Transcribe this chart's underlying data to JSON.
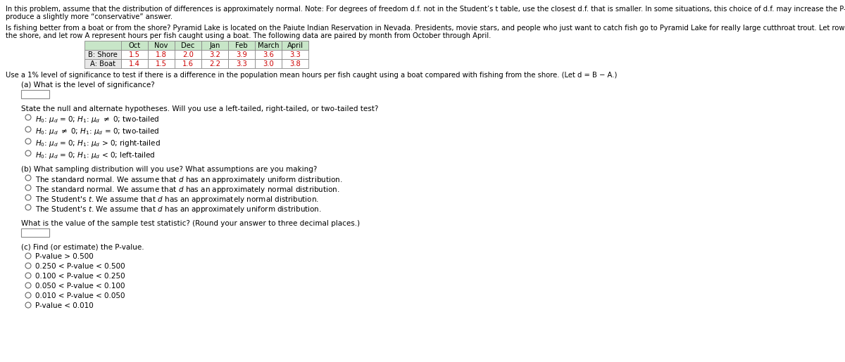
{
  "header_text1": "In this problem, assume that the distribution of differences is approximately normal. Note: For degrees of freedom d.f. not in the Student’s t table, use the closest d.f. that is smaller. In some situations, this choice of d.f. may increase the P-value by a small amount and therefore",
  "header_text2": "produce a slightly more “conservative” answer.",
  "para2_line1": "Is fishing better from a boat or from the shore? Pyramid Lake is located on the Paiute Indian Reservation in Nevada. Presidents, movie stars, and people who just want to catch fish go to Pyramid Lake for really large cutthroat trout. Let row B represent hours per fish caught fishing from",
  "para2_line2": "the shore, and let row A represent hours per fish caught using a boat. The following data are paired by month from October through April.",
  "table_headers": [
    "",
    "Oct",
    "Nov",
    "Dec",
    "Jan",
    "Feb",
    "March",
    "April"
  ],
  "row_b_label": "B: Shore",
  "row_b_values": [
    "1.5",
    "1.8",
    "2.0",
    "3.2",
    "3.9",
    "3.6",
    "3.3"
  ],
  "row_a_label": "A: Boat",
  "row_a_values": [
    "1.4",
    "1.5",
    "1.6",
    "2.2",
    "3.3",
    "3.0",
    "3.8"
  ],
  "use_text": "Use a 1% level of significance to test if there is a difference in the population mean hours per fish caught using a boat compared with fishing from the shore. (Let d = B − A.)",
  "part_a_label": "(a) What is the level of significance?",
  "hypotheses_intro": "State the null and alternate hypotheses. Will you use a left-tailed, right-tailed, or two-tailed test?",
  "part_b_label": "(b) What sampling distribution will you use? What assumptions are you making?",
  "dist_options": [
    "The standard normal. We assume that d has an approximately uniform distribution.",
    "The standard normal. We assume that d has an approximately normal distribution.",
    "The Student’s t. We assume that d has an approximately normal distribution.",
    "The Student’s t. We assume that d has an approximately uniform distribution."
  ],
  "test_stat_text": "What is the value of the sample test statistic? (Round your answer to three decimal places.)",
  "part_c_label": "(c) Find (or estimate) the P-value.",
  "pvalue_options": [
    "P-value > 0.500",
    "0.250 < P-value < 0.500",
    "0.100 < P-value < 0.250",
    "0.050 < P-value < 0.100",
    "0.010 < P-value < 0.050",
    "P-value < 0.010"
  ],
  "table_header_bg": "#c8e6c8",
  "table_border": "#888888",
  "text_color": "#000000",
  "red_color": "#cc0000",
  "bg_color": "#ffffff"
}
